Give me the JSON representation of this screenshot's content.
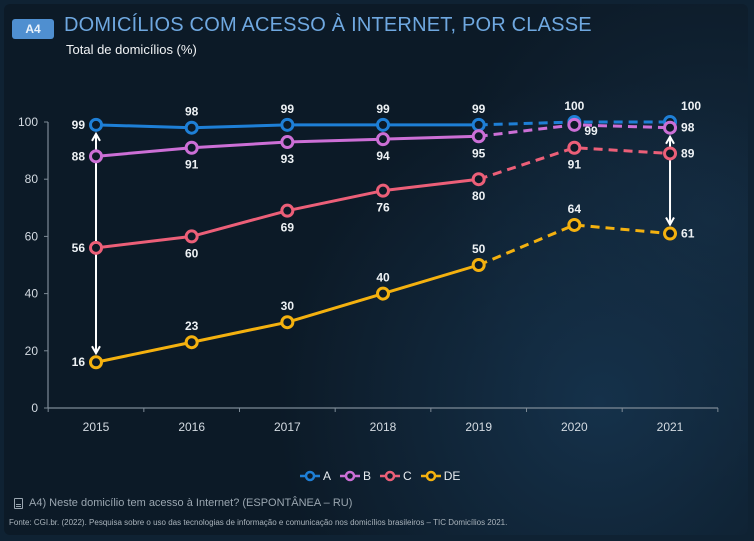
{
  "header": {
    "badge": "A4",
    "title": "DOMICÍLIOS COM ACESSO À INTERNET, POR CLASSE",
    "subtitle": "Total de domicílios (%)"
  },
  "colors": {
    "A": "#1e7fd6",
    "B": "#cc6fd6",
    "C": "#ec5f78",
    "DE": "#f4b10f",
    "arrow": "#ffffff",
    "axis": "#7d8a96"
  },
  "chart_data": {
    "type": "line",
    "title": "DOMICÍLIOS COM ACESSO À INTERNET, POR CLASSE",
    "subtitle": "Total de domicílios (%)",
    "xlabel": "",
    "ylabel": "",
    "x": [
      "2015",
      "2016",
      "2017",
      "2018",
      "2019",
      "2020",
      "2021"
    ],
    "ylim": [
      0,
      100
    ],
    "yticks": [
      0,
      20,
      40,
      60,
      80,
      100
    ],
    "grid": false,
    "legend_position": "bottom-center",
    "dashed_from_index": 4,
    "series": [
      {
        "name": "A",
        "values": [
          99,
          98,
          99,
          99,
          99,
          100,
          100
        ],
        "label_pos": [
          "left",
          "above",
          "above",
          "above",
          "above",
          "above",
          "right-above"
        ]
      },
      {
        "name": "B",
        "values": [
          88,
          91,
          93,
          94,
          95,
          99,
          98
        ],
        "label_pos": [
          "left",
          "below",
          "below",
          "below",
          "below",
          "below-right",
          "right"
        ]
      },
      {
        "name": "C",
        "values": [
          56,
          60,
          69,
          76,
          80,
          91,
          89
        ],
        "label_pos": [
          "left",
          "below",
          "below",
          "below",
          "below",
          "below",
          "right"
        ]
      },
      {
        "name": "DE",
        "values": [
          16,
          23,
          30,
          40,
          50,
          64,
          61
        ],
        "label_pos": [
          "left",
          "above",
          "above",
          "above",
          "above",
          "above",
          "right"
        ]
      }
    ],
    "annotations": [
      {
        "type": "double-arrow",
        "x": "2015",
        "from": 16,
        "to": 99
      },
      {
        "type": "double-arrow",
        "x": "2021",
        "from": 61,
        "to": 98
      }
    ]
  },
  "footer": {
    "note": "A4) Neste domicílio tem acesso à Internet? (ESPONTÂNEA – RU)",
    "source": "Fonte: CGI.br. (2022). Pesquisa sobre o uso das tecnologias de informação e comunicação nos domicílios brasileiros – TIC Domicílios 2021."
  }
}
